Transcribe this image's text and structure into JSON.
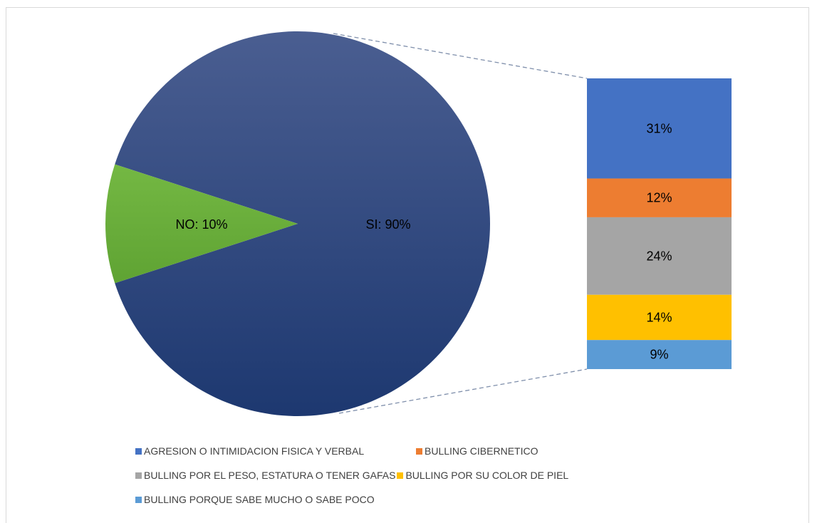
{
  "chart_data": {
    "type": "pie",
    "subtype": "bar-of-pie",
    "pie": {
      "slices": [
        {
          "label": "SI",
          "value": 90,
          "display": "SI: 90%",
          "color": "#2b457e"
        },
        {
          "label": "NO",
          "value": 10,
          "display": "NO: 10%",
          "color": "#6aad3d"
        }
      ]
    },
    "bar": {
      "expands": "SI",
      "segments": [
        {
          "label": "AGRESION O INTIMIDACION FISICA Y VERBAL",
          "value": 31,
          "display": "31%",
          "color": "#4472c4"
        },
        {
          "label": "BULLING CIBERNETICO",
          "value": 12,
          "display": "12%",
          "color": "#ed7d31"
        },
        {
          "label": "BULLING POR EL PESO, ESTATURA O TENER GAFAS",
          "value": 24,
          "display": "24%",
          "color": "#a5a5a5"
        },
        {
          "label": "BULLING POR SU COLOR DE PIEL",
          "value": 14,
          "display": "14%",
          "color": "#ffc000"
        },
        {
          "label": "BULLING PORQUE SABE MUCHO O SABE POCO",
          "value": 9,
          "display": "9%",
          "color": "#5b9bd5"
        }
      ]
    },
    "legend_position": "bottom"
  }
}
